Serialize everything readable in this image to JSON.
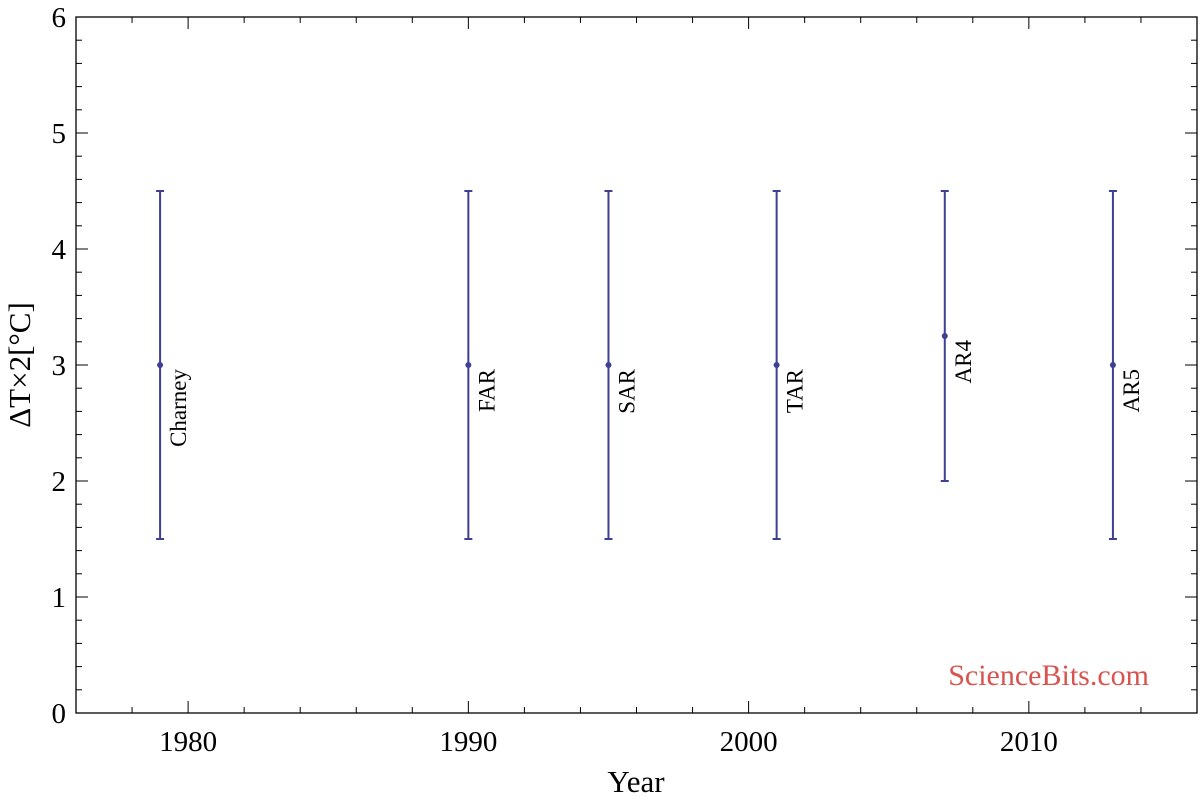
{
  "chart_data": {
    "type": "scatter",
    "title": "",
    "xlabel": "Year",
    "ylabel": "ΔT×2[°C]",
    "xlim": [
      1976,
      2016
    ],
    "ylim": [
      0,
      6
    ],
    "x_ticks": [
      1980,
      1990,
      2000,
      2010
    ],
    "y_ticks": [
      0,
      1,
      2,
      3,
      4,
      5,
      6
    ],
    "grid": false,
    "series": [
      {
        "color": "#3f3f96",
        "points": [
          {
            "label": "Charney",
            "x": 1979,
            "y": 3.0,
            "low": 1.5,
            "high": 4.5
          },
          {
            "label": "FAR",
            "x": 1990,
            "y": 3.0,
            "low": 1.5,
            "high": 4.5
          },
          {
            "label": "SAR",
            "x": 1995,
            "y": 3.0,
            "low": 1.5,
            "high": 4.5
          },
          {
            "label": "TAR",
            "x": 2001,
            "y": 3.0,
            "low": 1.5,
            "high": 4.5
          },
          {
            "label": "AR4",
            "x": 2007,
            "y": 3.25,
            "low": 2.0,
            "high": 4.5
          },
          {
            "label": "AR5",
            "x": 2013,
            "y": 3.0,
            "low": 1.5,
            "high": 4.5
          }
        ]
      }
    ],
    "watermark": "ScienceBits.com",
    "watermark_color": "#d9534f"
  }
}
